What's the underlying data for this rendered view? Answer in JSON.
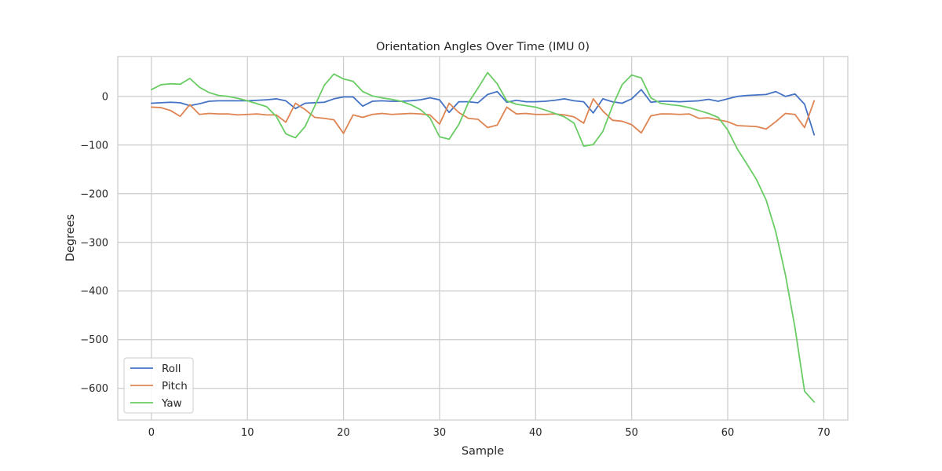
{
  "chart_data": {
    "type": "line",
    "title": "Orientation Angles Over Time (IMU 0)",
    "xlabel": "Sample",
    "ylabel": "Degrees",
    "xlim": [
      -3.5,
      72.5
    ],
    "ylim": [
      -665,
      82
    ],
    "x_ticks": [
      0,
      10,
      20,
      30,
      40,
      50,
      60,
      70
    ],
    "x_tick_labels": [
      "0",
      "10",
      "20",
      "30",
      "40",
      "50",
      "60",
      "70"
    ],
    "y_ticks": [
      0,
      -100,
      -200,
      -300,
      -400,
      -500,
      -600
    ],
    "y_tick_labels": [
      "0",
      "−100",
      "−200",
      "−300",
      "−400",
      "−500",
      "−600"
    ],
    "grid": true,
    "legend_position": "lower-left",
    "x": [
      0,
      1,
      2,
      3,
      4,
      5,
      6,
      7,
      8,
      9,
      10,
      11,
      12,
      13,
      14,
      15,
      16,
      17,
      18,
      19,
      20,
      21,
      22,
      23,
      24,
      25,
      26,
      27,
      28,
      29,
      30,
      31,
      32,
      33,
      34,
      35,
      36,
      37,
      38,
      39,
      40,
      41,
      42,
      43,
      44,
      45,
      46,
      47,
      48,
      49,
      50,
      51,
      52,
      53,
      54,
      55,
      56,
      57,
      58,
      59,
      60,
      61,
      62,
      63,
      64,
      65,
      66,
      67,
      68,
      69
    ],
    "series": [
      {
        "name": "Roll",
        "color": "#4472c4",
        "values": [
          -14,
          -13,
          -12,
          -13,
          -19,
          -15,
          -10,
          -9,
          -9,
          -9,
          -9,
          -8,
          -7,
          -5,
          -9,
          -25,
          -14,
          -13,
          -12,
          -5,
          -1,
          -1,
          -20,
          -10,
          -9,
          -10,
          -10,
          -9,
          -7,
          -3,
          -7,
          -33,
          -11,
          -11,
          -13,
          4,
          10,
          -12,
          -8,
          -11,
          -11,
          -10,
          -8,
          -5,
          -9,
          -11,
          -34,
          -5,
          -11,
          -14,
          -5,
          14,
          -12,
          -10,
          -10,
          -11,
          -10,
          -9,
          -6,
          -10,
          -5,
          0,
          2,
          3,
          4,
          10,
          0,
          5,
          -16,
          -79
        ]
      },
      {
        "name": "Pitch",
        "color": "#dd8452",
        "values": [
          -22,
          -23,
          -29,
          -41,
          -17,
          -37,
          -35,
          -36,
          -36,
          -38,
          -37,
          -36,
          -38,
          -38,
          -53,
          -14,
          -27,
          -43,
          -45,
          -48,
          -76,
          -38,
          -43,
          -37,
          -35,
          -37,
          -36,
          -35,
          -36,
          -38,
          -57,
          -14,
          -33,
          -45,
          -47,
          -64,
          -59,
          -22,
          -36,
          -35,
          -37,
          -37,
          -36,
          -38,
          -42,
          -55,
          -5,
          -30,
          -49,
          -51,
          -58,
          -75,
          -40,
          -36,
          -36,
          -37,
          -36,
          -45,
          -44,
          -48,
          -52,
          -60,
          -61,
          -62,
          -67,
          -52,
          -35,
          -37,
          -64,
          -9
        ]
      },
      {
        "name": "Yaw",
        "color": "#6acc64",
        "values": [
          14,
          24,
          26,
          25,
          37,
          19,
          8,
          2,
          0,
          -4,
          -9,
          -15,
          -21,
          -41,
          -77,
          -85,
          -62,
          -20,
          23,
          46,
          36,
          31,
          10,
          1,
          -3,
          -6,
          -10,
          -17,
          -27,
          -44,
          -83,
          -88,
          -58,
          -13,
          17,
          49,
          26,
          -9,
          -16,
          -19,
          -22,
          -28,
          -35,
          -42,
          -55,
          -102,
          -99,
          -72,
          -20,
          24,
          44,
          38,
          -3,
          -14,
          -17,
          -19,
          -23,
          -29,
          -35,
          -43,
          -69,
          -108,
          -139,
          -171,
          -213,
          -278,
          -366,
          -475,
          -606,
          -628
        ]
      }
    ]
  }
}
